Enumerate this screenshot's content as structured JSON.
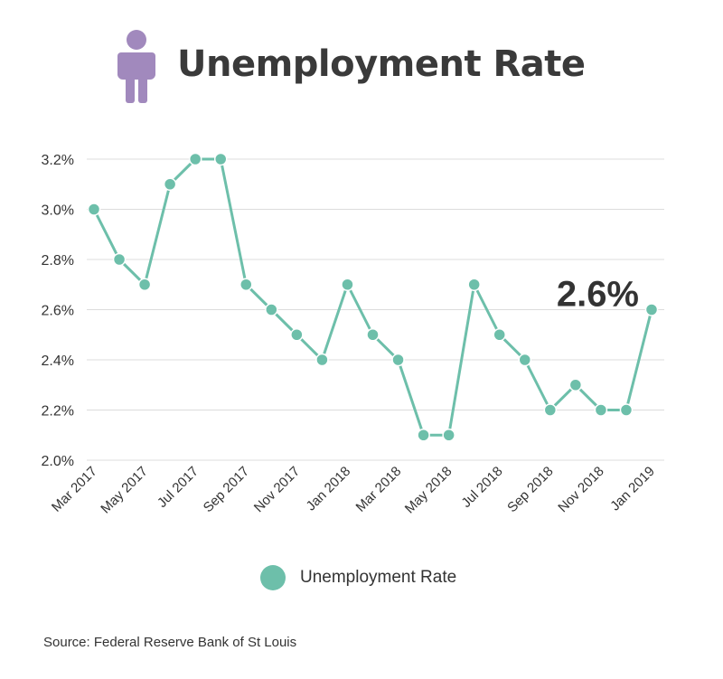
{
  "header": {
    "title": "Unemployment Rate",
    "icon": "person-icon",
    "icon_color": "#a189bd"
  },
  "chart_data": {
    "type": "line",
    "x": [
      "Mar 2017",
      "Apr 2017",
      "May 2017",
      "Jun 2017",
      "Jul 2017",
      "Aug 2017",
      "Sep 2017",
      "Oct 2017",
      "Nov 2017",
      "Dec 2017",
      "Jan 2018",
      "Feb 2018",
      "Mar 2018",
      "Apr 2018",
      "May 2018",
      "Jun 2018",
      "Jul 2018",
      "Aug 2018",
      "Sep 2018",
      "Oct 2018",
      "Nov 2018",
      "Dec 2018",
      "Jan 2019"
    ],
    "x_tick_labels": [
      "Mar 2017",
      "May 2017",
      "Jul 2017",
      "Sep 2017",
      "Nov 2017",
      "Jan 2018",
      "Mar 2018",
      "May 2018",
      "Jul 2018",
      "Sep 2018",
      "Nov 2018",
      "Jan 2019"
    ],
    "series": [
      {
        "name": "Unemployment Rate",
        "color": "#6dbfaa",
        "values": [
          3.0,
          2.8,
          2.7,
          3.1,
          3.2,
          3.2,
          2.7,
          2.6,
          2.5,
          2.4,
          2.7,
          2.5,
          2.4,
          2.1,
          2.1,
          2.7,
          2.5,
          2.4,
          2.2,
          2.3,
          2.2,
          2.2,
          2.6
        ]
      }
    ],
    "y_tick_labels": [
      "2.0%",
      "2.2%",
      "2.4%",
      "2.6%",
      "2.8%",
      "3.0%",
      "3.2%"
    ],
    "y_ticks": [
      2.0,
      2.2,
      2.4,
      2.6,
      2.8,
      3.0,
      3.2
    ],
    "ylim": [
      2.0,
      3.2
    ],
    "grid": true,
    "legend_position": "bottom",
    "annotation": "2.6%"
  },
  "legend": {
    "label": "Unemployment Rate"
  },
  "source": "Source:  Federal Reserve Bank of St Louis"
}
